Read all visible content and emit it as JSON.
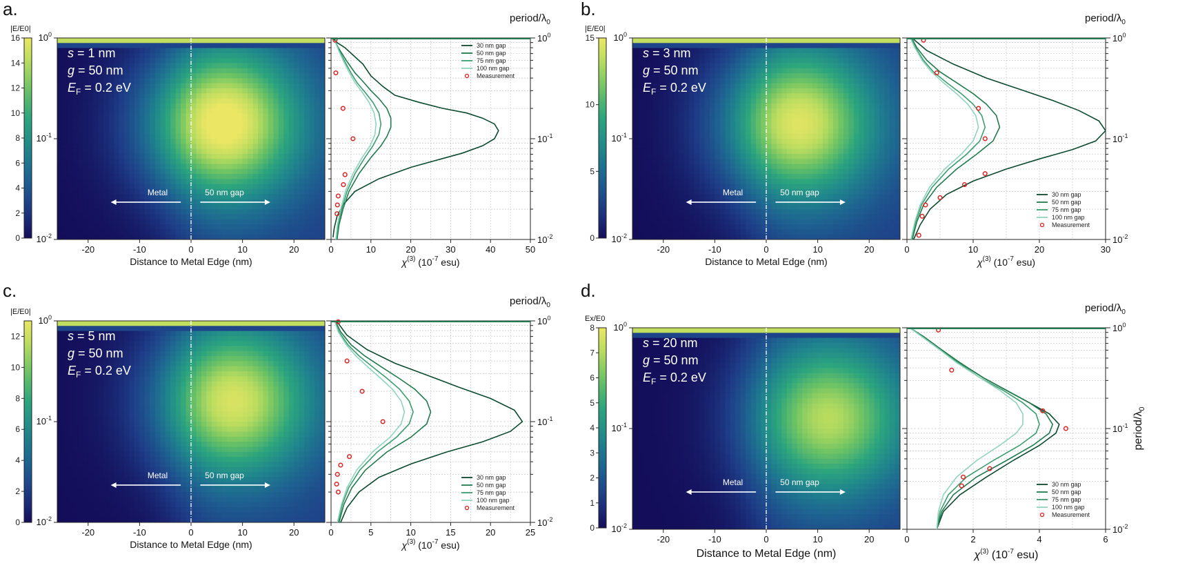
{
  "chart_data": [
    {
      "type": "heatmap",
      "panel_label": "a.",
      "colorbar": {
        "label": "|E/E0|",
        "ticks": [
          0,
          2,
          4,
          6,
          8,
          10,
          12,
          14,
          16
        ],
        "range": [
          0,
          16
        ]
      },
      "heatmap": {
        "x": [
          -26,
          26
        ],
        "ylim_log": [
          0.01,
          1
        ],
        "hotspot_x": 6,
        "hotspot_logy": -0.85,
        "peak_level": 0.9
      },
      "annotations": [
        "s = 1 nm",
        "g = 50 nm",
        "EF = 0.2 eV"
      ],
      "arrow_labels": [
        "Metal",
        "50 nm gap"
      ],
      "xlabel": "Distance to Metal Edge (nm)",
      "xticks": [
        -20,
        -10,
        0,
        10,
        20
      ],
      "right_label": "period/λ0",
      "line_xlabel": "χ(3) (10-7 esu)",
      "line_xlim": [
        0,
        50
      ],
      "line_xticks": [
        0,
        10,
        20,
        30,
        40,
        50
      ],
      "ylim": [
        0.01,
        1
      ],
      "yscale": "log",
      "legend": [
        "30 nm gap",
        "50 nm gap",
        "75 nm gap",
        "100 nm gap",
        "Measurement"
      ],
      "legend_position": "top-right",
      "series": [
        {
          "name": "30 nm gap",
          "color": "#0b4a2e",
          "x": [
            0.5,
            0.8,
            1.5,
            3,
            6,
            12,
            20,
            27,
            33,
            38,
            41,
            42,
            41,
            38,
            34,
            28,
            22,
            16,
            13,
            10,
            8,
            3.5,
            1.5,
            0.8,
            1.2,
            1.8
          ],
          "y": [
            0.0105,
            0.013,
            0.017,
            0.022,
            0.03,
            0.04,
            0.052,
            0.062,
            0.072,
            0.085,
            0.1,
            0.12,
            0.14,
            0.16,
            0.18,
            0.2,
            0.23,
            0.27,
            0.33,
            0.42,
            0.55,
            0.8,
            0.9,
            0.96,
            0.985,
            1.0
          ]
        },
        {
          "name": "50 nm gap",
          "color": "#1f7a4d",
          "x": [
            1.5,
            2,
            3,
            4.5,
            7,
            10,
            12.5,
            14,
            15,
            15,
            14,
            12,
            10,
            8,
            6,
            3.8,
            1.8,
            1.2,
            1.5,
            2
          ],
          "y": [
            0.01,
            0.014,
            0.02,
            0.03,
            0.045,
            0.065,
            0.085,
            0.105,
            0.13,
            0.16,
            0.2,
            0.25,
            0.3,
            0.37,
            0.45,
            0.6,
            0.8,
            0.9,
            0.97,
            1.0
          ]
        },
        {
          "name": "75 nm gap",
          "color": "#3a9e6f",
          "x": [
            1.3,
            1.8,
            2.7,
            4,
            6,
            8.5,
            10.5,
            12,
            12.5,
            12,
            10.5,
            8.5,
            6.5,
            5,
            3.5,
            2,
            1.2,
            1.5,
            2
          ],
          "y": [
            0.01,
            0.014,
            0.02,
            0.03,
            0.045,
            0.065,
            0.085,
            0.11,
            0.14,
            0.18,
            0.23,
            0.29,
            0.36,
            0.45,
            0.58,
            0.75,
            0.9,
            0.97,
            1.0
          ]
        },
        {
          "name": "100 nm gap",
          "color": "#8fd3bd",
          "x": [
            1.2,
            1.6,
            2.4,
            3.6,
            5.5,
            7.8,
            9.8,
            11,
            11.3,
            10.8,
            9.5,
            7.8,
            6,
            4.6,
            3.2,
            1.9,
            1.1,
            1.4,
            2
          ],
          "y": [
            0.01,
            0.014,
            0.02,
            0.03,
            0.045,
            0.065,
            0.085,
            0.11,
            0.14,
            0.18,
            0.23,
            0.29,
            0.36,
            0.45,
            0.58,
            0.75,
            0.9,
            0.97,
            1.0
          ]
        },
        {
          "name": "Measurement",
          "color": "#e02020",
          "kind": "scatter",
          "x": [
            1.5,
            1.6,
            1.8,
            3.1,
            3.5,
            5.5,
            3.0,
            1.2,
            1.0
          ],
          "y": [
            0.018,
            0.022,
            0.027,
            0.035,
            0.044,
            0.1,
            0.2,
            0.45,
            0.95
          ]
        }
      ]
    },
    {
      "type": "heatmap",
      "panel_label": "b.",
      "colorbar": {
        "label": "|E/E0|",
        "ticks": [
          0,
          5,
          10,
          15
        ],
        "range": [
          0,
          15
        ]
      },
      "heatmap": {
        "x": [
          -26,
          26
        ],
        "ylim_log": [
          0.01,
          1
        ],
        "hotspot_x": 6,
        "hotspot_logy": -0.85,
        "peak_level": 0.82
      },
      "annotations": [
        "s = 3 nm",
        "g = 50 nm",
        "EF = 0.2 eV"
      ],
      "arrow_labels": [
        "Metal",
        "50 nm gap"
      ],
      "xlabel": "Distance to Metal Edge (nm)",
      "xticks": [
        -20,
        -10,
        0,
        10,
        20
      ],
      "right_label": "period/λ0",
      "line_xlabel": "χ(3) (10-7 esu)",
      "line_xlim": [
        0,
        30
      ],
      "line_xticks": [
        0,
        10,
        20,
        30
      ],
      "ylim": [
        0.01,
        1
      ],
      "yscale": "log",
      "legend": [
        "30 nm gap",
        "50 nm gap",
        "75 nm gap",
        "100 nm gap",
        "Measurement"
      ],
      "legend_position": "bottom-right",
      "series": [
        {
          "name": "30 nm gap",
          "color": "#0b4a2e",
          "x": [
            1,
            2,
            3.5,
            6,
            10,
            15,
            20,
            25,
            28.5,
            30,
            29,
            26,
            22,
            17,
            12,
            7,
            3,
            1
          ],
          "y": [
            0.01,
            0.014,
            0.02,
            0.028,
            0.038,
            0.05,
            0.063,
            0.078,
            0.095,
            0.12,
            0.15,
            0.19,
            0.24,
            0.31,
            0.4,
            0.55,
            0.75,
            0.97
          ]
        },
        {
          "name": "50 nm gap",
          "color": "#1f7a4d",
          "x": [
            0.8,
            1.5,
            2.5,
            4.5,
            7.5,
            10.5,
            13,
            14,
            13.5,
            12,
            10,
            7.5,
            5,
            3,
            1.5,
            0.8
          ],
          "y": [
            0.01,
            0.015,
            0.022,
            0.033,
            0.05,
            0.07,
            0.095,
            0.13,
            0.17,
            0.22,
            0.28,
            0.36,
            0.46,
            0.6,
            0.8,
            0.97
          ]
        },
        {
          "name": "75 nm gap",
          "color": "#3a9e6f",
          "x": [
            0.7,
            1.3,
            2.2,
            3.8,
            6.3,
            9,
            11,
            11.8,
            11.3,
            10,
            8.2,
            6,
            4,
            2.5,
            1.3,
            0.7
          ],
          "y": [
            0.01,
            0.015,
            0.022,
            0.033,
            0.05,
            0.07,
            0.095,
            0.13,
            0.17,
            0.22,
            0.28,
            0.36,
            0.46,
            0.6,
            0.8,
            0.97
          ]
        },
        {
          "name": "100 nm gap",
          "color": "#8fd3bd",
          "x": [
            0.6,
            1.2,
            2,
            3.4,
            5.7,
            8.2,
            10,
            10.8,
            10.4,
            9.2,
            7.5,
            5.5,
            3.7,
            2.3,
            1.2,
            0.6
          ],
          "y": [
            0.01,
            0.015,
            0.022,
            0.033,
            0.05,
            0.07,
            0.095,
            0.13,
            0.17,
            0.22,
            0.28,
            0.36,
            0.46,
            0.6,
            0.8,
            0.97
          ]
        },
        {
          "name": "Measurement",
          "color": "#e02020",
          "kind": "scatter",
          "x": [
            1.8,
            2.3,
            2.8,
            5.0,
            8.7,
            11.8,
            11.8,
            10.8,
            4.5,
            2.5
          ],
          "y": [
            0.011,
            0.017,
            0.022,
            0.026,
            0.035,
            0.045,
            0.1,
            0.2,
            0.45,
            0.95
          ]
        }
      ]
    },
    {
      "type": "heatmap",
      "panel_label": "c.",
      "colorbar": {
        "label": "|E/E0|",
        "ticks": [
          0,
          2,
          4,
          6,
          8,
          10,
          12
        ],
        "range": [
          0,
          13
        ]
      },
      "heatmap": {
        "x": [
          -26,
          26
        ],
        "ylim_log": [
          0.01,
          1
        ],
        "hotspot_x": 8,
        "hotspot_logy": -0.8,
        "peak_level": 0.8
      },
      "annotations": [
        "s = 5 nm",
        "g = 50 nm",
        "EF = 0.2 eV"
      ],
      "arrow_labels": [
        "Metal",
        "50 nm gap"
      ],
      "xlabel": "Distance to Metal Edge (nm)",
      "xticks": [
        -20,
        -10,
        0,
        10,
        20
      ],
      "right_label": "period/λ0",
      "line_xlabel": "χ(3) (10-7 esu)",
      "line_xlim": [
        0,
        25
      ],
      "line_xticks": [
        0,
        5,
        10,
        15,
        20,
        25
      ],
      "ylim": [
        0.01,
        1
      ],
      "yscale": "log",
      "legend": [
        "30 nm gap",
        "50 nm gap",
        "75 nm gap",
        "100 nm gap",
        "Measurement"
      ],
      "legend_position": "bottom-right",
      "series": [
        {
          "name": "30 nm gap",
          "color": "#0b4a2e",
          "x": [
            1.2,
            2,
            3.5,
            6,
            10,
            14.5,
            19,
            22.5,
            24,
            23,
            20,
            16,
            12,
            8,
            4.5,
            2,
            0.8
          ],
          "y": [
            0.01,
            0.014,
            0.02,
            0.028,
            0.038,
            0.05,
            0.063,
            0.08,
            0.1,
            0.13,
            0.17,
            0.22,
            0.29,
            0.38,
            0.52,
            0.72,
            0.97
          ]
        },
        {
          "name": "50 nm gap",
          "color": "#1f7a4d",
          "x": [
            1,
            1.6,
            2.6,
            4.3,
            7,
            10,
            12,
            12.5,
            12,
            10.5,
            8.5,
            6.3,
            4.2,
            2.5,
            1.2,
            0.6
          ],
          "y": [
            0.01,
            0.015,
            0.022,
            0.033,
            0.05,
            0.07,
            0.095,
            0.125,
            0.16,
            0.21,
            0.27,
            0.35,
            0.45,
            0.58,
            0.78,
            0.97
          ]
        },
        {
          "name": "75 nm gap",
          "color": "#3a9e6f",
          "x": [
            0.9,
            1.4,
            2.2,
            3.6,
            5.8,
            8.2,
            9.8,
            10.3,
            9.8,
            8.6,
            7,
            5.2,
            3.5,
            2.1,
            1,
            0.5
          ],
          "y": [
            0.01,
            0.015,
            0.022,
            0.033,
            0.05,
            0.07,
            0.095,
            0.125,
            0.16,
            0.21,
            0.27,
            0.35,
            0.45,
            0.58,
            0.78,
            0.97
          ]
        },
        {
          "name": "100 nm gap",
          "color": "#8fd3bd",
          "x": [
            0.8,
            1.3,
            2,
            3.2,
            5.2,
            7.4,
            8.8,
            9.2,
            8.8,
            7.7,
            6.2,
            4.6,
            3.1,
            1.9,
            0.9,
            0.5
          ],
          "y": [
            0.01,
            0.015,
            0.022,
            0.033,
            0.05,
            0.07,
            0.095,
            0.125,
            0.16,
            0.21,
            0.27,
            0.35,
            0.45,
            0.58,
            0.78,
            0.97
          ]
        },
        {
          "name": "Measurement",
          "color": "#e02020",
          "kind": "scatter",
          "x": [
            0.9,
            0.7,
            0.8,
            1.2,
            2.3,
            6.5,
            3.9,
            2.0,
            0.9
          ],
          "y": [
            0.02,
            0.024,
            0.03,
            0.037,
            0.045,
            0.1,
            0.2,
            0.4,
            0.98
          ]
        }
      ]
    },
    {
      "type": "heatmap",
      "panel_label": "d.",
      "colorbar": {
        "label": "Ex/E0",
        "ticks": [
          0,
          1,
          2,
          3,
          4,
          5,
          6,
          7,
          8
        ],
        "range": [
          0,
          8
        ]
      },
      "heatmap": {
        "x": [
          -26,
          26
        ],
        "ylim_log": [
          0.01,
          1
        ],
        "hotspot_x": 12,
        "hotspot_logy": -0.9,
        "peak_level": 0.72
      },
      "annotations": [
        "s = 20 nm",
        "g = 50 nm",
        "EF = 0.2 eV"
      ],
      "arrow_labels": [
        "Metal",
        "50 nm gap"
      ],
      "xlabel": "Distance to Metal Edge (nm)",
      "xticks": [
        -20,
        -10,
        0,
        10,
        20
      ],
      "right_label": "period/λ0",
      "right_ylabel": "period/λ0",
      "line_xlabel": "χ(3) (10-7 esu)",
      "line_xlim": [
        0,
        6
      ],
      "line_xticks": [
        0,
        2,
        4,
        6
      ],
      "ylim": [
        0.01,
        1
      ],
      "yscale": "log",
      "legend": [
        "30 nm gap",
        "50 nm gap",
        "75 nm gap",
        "100 nm gap",
        "Measurement"
      ],
      "legend_position": "bottom-right",
      "series": [
        {
          "name": "30 nm gap",
          "color": "#0b4a2e",
          "x": [
            0.9,
            1.1,
            1.6,
            2.4,
            3.2,
            4.0,
            4.5,
            4.6,
            4.3,
            3.7,
            3.0,
            2.3,
            1.6,
            1.0,
            0.5,
            0.1
          ],
          "y": [
            0.01,
            0.015,
            0.022,
            0.033,
            0.048,
            0.068,
            0.09,
            0.11,
            0.14,
            0.18,
            0.24,
            0.32,
            0.45,
            0.62,
            0.82,
            0.99
          ]
        },
        {
          "name": "50 nm gap",
          "color": "#1f7a4d",
          "x": [
            0.9,
            1.05,
            1.4,
            2.1,
            3.0,
            3.8,
            4.3,
            4.4,
            4.2,
            3.7,
            3.0,
            2.3,
            1.6,
            1.0,
            0.5,
            0.1
          ],
          "y": [
            0.01,
            0.015,
            0.022,
            0.033,
            0.048,
            0.068,
            0.09,
            0.11,
            0.14,
            0.18,
            0.24,
            0.32,
            0.45,
            0.62,
            0.82,
            0.99
          ]
        },
        {
          "name": "75 nm gap",
          "color": "#3a9e6f",
          "x": [
            0.9,
            1.0,
            1.25,
            1.8,
            2.6,
            3.4,
            3.9,
            4.0,
            3.9,
            3.5,
            2.9,
            2.2,
            1.55,
            0.95,
            0.45,
            0.1
          ],
          "y": [
            0.01,
            0.015,
            0.022,
            0.033,
            0.048,
            0.068,
            0.09,
            0.11,
            0.14,
            0.18,
            0.24,
            0.32,
            0.45,
            0.62,
            0.82,
            0.99
          ]
        },
        {
          "name": "100 nm gap",
          "color": "#8fd3bd",
          "x": [
            0.9,
            0.95,
            1.1,
            1.5,
            2.1,
            2.8,
            3.3,
            3.5,
            3.5,
            3.3,
            2.8,
            2.2,
            1.5,
            0.95,
            0.45,
            0.1
          ],
          "y": [
            0.01,
            0.015,
            0.022,
            0.033,
            0.048,
            0.068,
            0.09,
            0.11,
            0.14,
            0.18,
            0.24,
            0.32,
            0.45,
            0.62,
            0.82,
            0.99
          ]
        },
        {
          "name": "Measurement",
          "color": "#e02020",
          "kind": "scatter",
          "x": [
            1.65,
            1.7,
            2.5,
            4.8,
            4.1,
            1.35,
            0.95
          ],
          "y": [
            0.027,
            0.033,
            0.04,
            0.1,
            0.15,
            0.38,
            0.95
          ]
        }
      ]
    }
  ]
}
